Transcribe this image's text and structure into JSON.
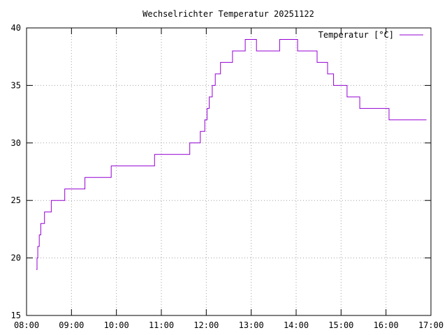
{
  "chart_data": {
    "type": "line",
    "title": "Wechselrichter Temperatur 20251122",
    "xlabel": "",
    "ylabel": "",
    "x_ticks": [
      "08:00",
      "09:00",
      "10:00",
      "11:00",
      "12:00",
      "13:00",
      "14:00",
      "15:00",
      "16:00",
      "17:00"
    ],
    "x_range": [
      "08:00",
      "17:00"
    ],
    "y_ticks": [
      15,
      20,
      25,
      30,
      35,
      40
    ],
    "ylim": [
      15,
      40
    ],
    "grid": true,
    "legend_position": "top-right",
    "series": [
      {
        "name": "Temperatur [°C]",
        "color": "#9400d3",
        "step": true,
        "points": [
          [
            "08:13",
            19
          ],
          [
            "08:14",
            20
          ],
          [
            "08:15",
            21
          ],
          [
            "08:17",
            22
          ],
          [
            "08:19",
            23
          ],
          [
            "08:24",
            24
          ],
          [
            "08:33",
            25
          ],
          [
            "08:51",
            26
          ],
          [
            "09:18",
            27
          ],
          [
            "09:53",
            28
          ],
          [
            "10:51",
            29
          ],
          [
            "11:38",
            30
          ],
          [
            "11:52",
            31
          ],
          [
            "11:58",
            32
          ],
          [
            "12:01",
            33
          ],
          [
            "12:04",
            34
          ],
          [
            "12:08",
            35
          ],
          [
            "12:12",
            36
          ],
          [
            "12:19",
            37
          ],
          [
            "12:35",
            38
          ],
          [
            "12:52",
            39
          ],
          [
            "13:07",
            38
          ],
          [
            "13:38",
            39
          ],
          [
            "14:02",
            38
          ],
          [
            "14:28",
            37
          ],
          [
            "14:42",
            36
          ],
          [
            "14:50",
            35
          ],
          [
            "15:08",
            34
          ],
          [
            "15:25",
            33
          ],
          [
            "16:04",
            32
          ],
          [
            "16:54",
            32
          ]
        ]
      }
    ]
  }
}
